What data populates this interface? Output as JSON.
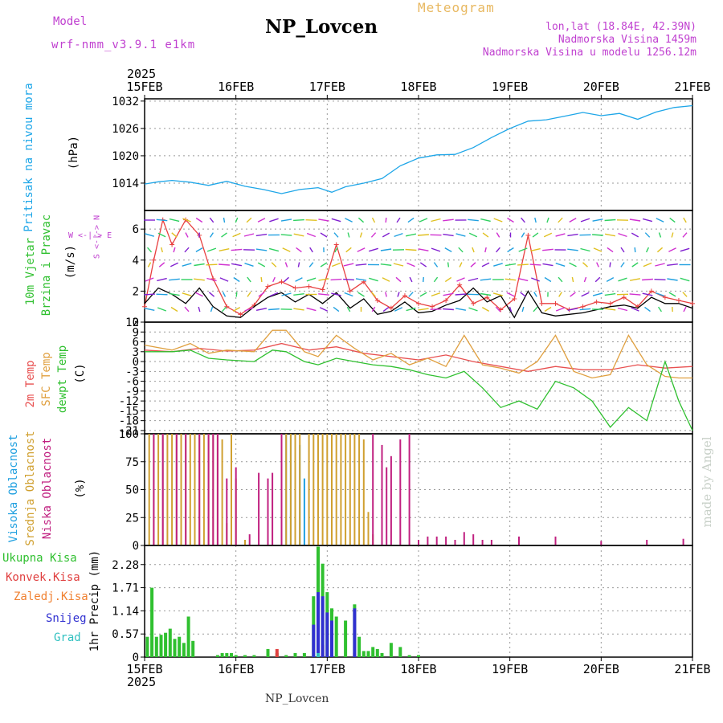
{
  "header": {
    "model_label": "Model",
    "model_version": "wrf-nmm_v3.9.1 e1km",
    "station_title": "NP_Lovcen",
    "meteogram_label": "Meteogram",
    "coords": "lon,lat (18.84E, 42.39N)",
    "elevation": "Nadmorska Visina 1459m",
    "model_elevation": "Nadmorska Visina u modelu 1256.12m",
    "year_top": "2025",
    "year_bottom": "2025",
    "footer_station": "NP_Lovcen",
    "watermark": "made by Angel"
  },
  "colors": {
    "pressure": "#1ea6e8",
    "speed_model": "#e84040",
    "speed_obs": "#000000",
    "temp2m": "#e85050",
    "sfc_temp": "#e0a040",
    "dewpoint": "#30c030",
    "cloud_high": "#20a0e0",
    "cloud_mid": "#d0a030",
    "cloud_low": "#c02080",
    "rain_total": "#30c030",
    "rain_conv": "#e04040",
    "freezing": "#f08030",
    "snow": "#3030d0",
    "hail": "#30c0c0",
    "wind_label": "#c040d0"
  },
  "axis_labels": {
    "pressure_name": "Pritisak na nivou mora",
    "pressure_unit": "(hPa)",
    "wind_name_1": "10m Vjetar",
    "wind_name_2": "Brzina i Pravac",
    "wind_unit": "(m/s)",
    "compass": "W <-|-> E",
    "compass2": "S <-|-> N",
    "temp_2m": "2m Temp",
    "temp_sfc": "SFC Temp",
    "temp_dew": "dewpt Temp",
    "temp_unit": "(C)",
    "cloud_high": "Visoka Oblacnost",
    "cloud_mid": "Srednja Oblacnost",
    "cloud_low": "Niska Oblacnost",
    "cloud_unit": "(%)",
    "precip_total": "Ukupna Kisa",
    "precip_conv": "Konvek.Kisa",
    "precip_freeze": "Zaledj.Kisa",
    "precip_snow": "Snijeg",
    "precip_hail": "Grad",
    "precip_unit": "1hr Precip (mm)"
  },
  "chart_data": [
    {
      "type": "line",
      "panel": "pressure",
      "x_dates": [
        "15FEB",
        "16FEB",
        "17FEB",
        "18FEB",
        "19FEB",
        "20FEB",
        "21FEB"
      ],
      "yticks": [
        "1014",
        "1020",
        "1026",
        "1032"
      ],
      "ylim": [
        1008,
        1032.5
      ],
      "series": [
        {
          "name": "Pritisak na nivou mora",
          "x": [
            0,
            0.15,
            0.3,
            0.5,
            0.7,
            0.9,
            1.1,
            1.3,
            1.5,
            1.7,
            1.9,
            2.05,
            2.2,
            2.4,
            2.6,
            2.8,
            3.0,
            3.2,
            3.4,
            3.6,
            3.8,
            4.0,
            4.2,
            4.4,
            4.6,
            4.8,
            5.0,
            5.2,
            5.4,
            5.6,
            5.8,
            6.0
          ],
          "y": [
            1013.8,
            1014.3,
            1014.6,
            1014.2,
            1013.5,
            1014.4,
            1013.3,
            1012.6,
            1011.7,
            1012.6,
            1013.0,
            1012.0,
            1013.2,
            1014.0,
            1015.0,
            1017.8,
            1019.5,
            1020.2,
            1020.3,
            1021.8,
            1024.0,
            1026.0,
            1027.6,
            1027.9,
            1028.7,
            1029.5,
            1028.8,
            1029.3,
            1028.0,
            1029.6,
            1030.6,
            1031.0
          ]
        }
      ]
    },
    {
      "type": "line",
      "panel": "wind",
      "yticks": [
        "0",
        "2",
        "4",
        "6"
      ],
      "ylim": [
        0,
        7.2
      ],
      "series": [
        {
          "name": "10m wind model",
          "x": [
            0,
            0.1,
            0.2,
            0.3,
            0.45,
            0.6,
            0.75,
            0.9,
            1.05,
            1.2,
            1.35,
            1.5,
            1.65,
            1.8,
            1.95,
            2.1,
            2.25,
            2.4,
            2.55,
            2.7,
            2.85,
            3.0,
            3.15,
            3.3,
            3.45,
            3.6,
            3.75,
            3.9,
            4.05,
            4.2,
            4.35,
            4.5,
            4.65,
            4.8,
            4.95,
            5.1,
            5.25,
            5.4,
            5.55,
            5.7,
            5.85,
            6.0
          ],
          "y": [
            1.0,
            4.0,
            6.6,
            5.0,
            6.6,
            5.6,
            2.8,
            1.0,
            0.5,
            1.1,
            2.3,
            2.6,
            2.2,
            2.3,
            2.1,
            5.0,
            2.0,
            2.6,
            1.4,
            0.9,
            1.7,
            1.2,
            1.0,
            1.4,
            2.4,
            1.2,
            1.6,
            0.8,
            1.5,
            5.6,
            1.2,
            1.2,
            0.8,
            1.0,
            1.3,
            1.2,
            1.6,
            1.0,
            2.0,
            1.6,
            1.4,
            1.2
          ]
        },
        {
          "name": "10m wind obs",
          "x": [
            0,
            0.15,
            0.3,
            0.45,
            0.6,
            0.75,
            0.9,
            1.05,
            1.2,
            1.35,
            1.5,
            1.65,
            1.8,
            1.95,
            2.1,
            2.25,
            2.4,
            2.55,
            2.7,
            2.85,
            3.0,
            3.15,
            3.3,
            3.45,
            3.6,
            3.75,
            3.9,
            4.05,
            4.2,
            4.35,
            4.5,
            4.65,
            4.8,
            4.95,
            5.1,
            5.25,
            5.4,
            5.55,
            5.7,
            5.85,
            6.0
          ],
          "y": [
            1.2,
            2.2,
            1.8,
            1.2,
            2.2,
            1.0,
            0.4,
            0.3,
            1.0,
            1.6,
            1.9,
            1.3,
            1.8,
            1.2,
            1.9,
            0.9,
            1.5,
            0.5,
            0.7,
            1.3,
            0.6,
            0.7,
            1.1,
            1.4,
            2.2,
            1.3,
            1.7,
            0.3,
            2.0,
            0.6,
            0.4,
            0.5,
            0.6,
            0.8,
            1.0,
            1.1,
            0.9,
            1.6,
            1.2,
            1.2,
            0.9
          ]
        }
      ]
    },
    {
      "type": "line",
      "panel": "temperature",
      "yticks": [
        "-21",
        "-18",
        "-15",
        "-12",
        "-9",
        "-6",
        "-3",
        "0",
        "3",
        "6",
        "9",
        "12"
      ],
      "ylim": [
        -22,
        12
      ],
      "series": [
        {
          "name": "2m Temp",
          "x": [
            0,
            0.3,
            0.6,
            0.9,
            1.2,
            1.5,
            1.8,
            2.1,
            2.4,
            2.7,
            3.0,
            3.3,
            3.6,
            3.9,
            4.2,
            4.5,
            4.8,
            5.1,
            5.4,
            5.7,
            6.0
          ],
          "y": [
            3.5,
            3.0,
            4.0,
            3.2,
            3.5,
            5.5,
            3.5,
            4.5,
            2.5,
            1.5,
            0.5,
            2.0,
            0.0,
            -1.5,
            -3.0,
            -1.5,
            -2.5,
            -2.5,
            -1.0,
            -2.0,
            -1.5
          ]
        },
        {
          "name": "SFC Temp",
          "x": [
            0,
            0.3,
            0.5,
            0.7,
            0.9,
            1.2,
            1.4,
            1.55,
            1.75,
            1.9,
            2.1,
            2.3,
            2.5,
            2.7,
            2.9,
            3.1,
            3.3,
            3.5,
            3.7,
            3.9,
            4.1,
            4.3,
            4.5,
            4.7,
            4.9,
            5.1,
            5.3,
            5.5,
            5.7,
            5.85,
            6.0
          ],
          "y": [
            5.0,
            3.5,
            5.5,
            2.5,
            3.5,
            3.0,
            9.5,
            9.5,
            3.0,
            1.5,
            8.0,
            4.0,
            0.5,
            2.5,
            -1.0,
            1.0,
            -1.5,
            8.0,
            -1.0,
            -2.0,
            -3.5,
            0.0,
            8.0,
            -3.0,
            -5.0,
            -4.0,
            8.0,
            -1.0,
            -4.5,
            -5.0,
            -5.0
          ]
        },
        {
          "name": "dewpt Temp",
          "x": [
            0,
            0.3,
            0.5,
            0.7,
            0.9,
            1.2,
            1.4,
            1.55,
            1.75,
            1.9,
            2.1,
            2.3,
            2.5,
            2.7,
            2.9,
            3.1,
            3.3,
            3.5,
            3.7,
            3.9,
            4.1,
            4.3,
            4.5,
            4.7,
            4.9,
            5.1,
            5.3,
            5.5,
            5.7,
            5.85,
            6.0
          ],
          "y": [
            3.0,
            3.0,
            3.5,
            1.0,
            0.5,
            0.0,
            3.5,
            3.0,
            0.0,
            -1.0,
            1.0,
            0.0,
            -1.0,
            -1.5,
            -2.5,
            -4.0,
            -5.0,
            -3.0,
            -8.0,
            -14.0,
            -12.0,
            -14.5,
            -6.0,
            -8.0,
            -12.0,
            -20.0,
            -14.0,
            -18.0,
            0.0,
            -12.0,
            -21.0
          ]
        }
      ]
    },
    {
      "type": "bar",
      "panel": "clouds",
      "yticks": [
        "0",
        "25",
        "50",
        "75",
        "100"
      ],
      "ylim": [
        0,
        100
      ],
      "series": [
        {
          "name": "Visoka Oblacnost",
          "x": [
            1.55,
            1.6,
            1.65,
            1.7,
            1.75
          ],
          "values": [
            100,
            100,
            100,
            90,
            60
          ]
        },
        {
          "name": "Srednja Oblacnost",
          "x": [
            0.05,
            0.1,
            0.15,
            0.2,
            0.25,
            0.3,
            0.35,
            0.4,
            0.45,
            0.5,
            0.55,
            0.6,
            0.65,
            0.7,
            0.75,
            0.8,
            0.85,
            0.9,
            0.95,
            1.0,
            1.1,
            1.55,
            1.6,
            1.65,
            1.7,
            1.8,
            1.85,
            1.9,
            1.95,
            2.0,
            2.05,
            2.1,
            2.15,
            2.2,
            2.25,
            2.3,
            2.35,
            2.4,
            2.45,
            2.5
          ],
          "values": [
            100,
            100,
            100,
            100,
            100,
            100,
            100,
            100,
            100,
            100,
            100,
            100,
            100,
            100,
            100,
            100,
            95,
            20,
            100,
            60,
            5,
            100,
            100,
            100,
            100,
            100,
            100,
            100,
            100,
            100,
            100,
            100,
            100,
            100,
            100,
            100,
            100,
            95,
            30,
            10
          ]
        },
        {
          "name": "Niska Oblacnost",
          "x": [
            0.1,
            0.2,
            0.35,
            0.45,
            0.6,
            0.7,
            0.75,
            0.8,
            0.9,
            1.0,
            1.15,
            1.25,
            1.35,
            1.4,
            1.5,
            2.5,
            2.6,
            2.65,
            2.7,
            2.8,
            2.9,
            3.0,
            3.1,
            3.2,
            3.3,
            3.4,
            3.5,
            3.6,
            3.7,
            3.8,
            4.1,
            4.5,
            5.0,
            5.5,
            5.9
          ],
          "values": [
            100,
            100,
            100,
            100,
            100,
            100,
            100,
            100,
            60,
            70,
            10,
            65,
            60,
            65,
            100,
            100,
            90,
            70,
            80,
            95,
            100,
            5,
            8,
            8,
            8,
            5,
            12,
            10,
            5,
            5,
            8,
            8,
            4,
            5,
            6
          ]
        }
      ]
    },
    {
      "type": "bar",
      "panel": "precipitation",
      "yticks": [
        "0",
        "0.57",
        "1.14",
        "1.71",
        "2.28"
      ],
      "ylim": [
        0,
        2.75
      ],
      "series": [
        {
          "name": "Ukupna Kisa",
          "x": [
            0.03,
            0.08,
            0.13,
            0.18,
            0.23,
            0.28,
            0.33,
            0.38,
            0.43,
            0.48,
            0.53,
            0.8,
            0.85,
            0.9,
            0.95,
            1.0,
            1.1,
            1.2,
            1.35,
            1.45,
            1.55,
            1.65,
            1.75,
            1.85,
            1.9,
            1.95,
            2.0,
            2.05,
            2.1,
            2.2,
            2.3,
            2.35,
            2.4,
            2.45,
            2.5,
            2.55,
            2.6,
            2.7,
            2.8,
            2.9,
            3.0
          ],
          "values": [
            0.5,
            1.71,
            0.5,
            0.55,
            0.6,
            0.7,
            0.45,
            0.5,
            0.35,
            1.0,
            0.4,
            0.05,
            0.1,
            0.1,
            0.1,
            0.05,
            0.05,
            0.05,
            0.2,
            0.1,
            0.05,
            0.1,
            0.1,
            1.5,
            2.72,
            2.3,
            1.6,
            1.2,
            1.0,
            0.9,
            1.3,
            0.5,
            0.15,
            0.15,
            0.25,
            0.2,
            0.1,
            0.35,
            0.25,
            0.05,
            0.05
          ]
        },
        {
          "name": "Konvek.Kisa",
          "x": [
            1.45,
            1.9,
            1.95,
            2.3
          ],
          "values": [
            0.2,
            0.25,
            0.3,
            0.1
          ]
        },
        {
          "name": "Snijeg",
          "x": [
            1.85,
            1.9,
            1.95,
            2.0,
            2.05,
            2.3
          ],
          "values": [
            0.8,
            1.6,
            1.5,
            1.1,
            0.9,
            1.2
          ]
        },
        {
          "name": "Grad",
          "x": [
            1.9
          ],
          "values": [
            0.1
          ]
        }
      ]
    }
  ]
}
